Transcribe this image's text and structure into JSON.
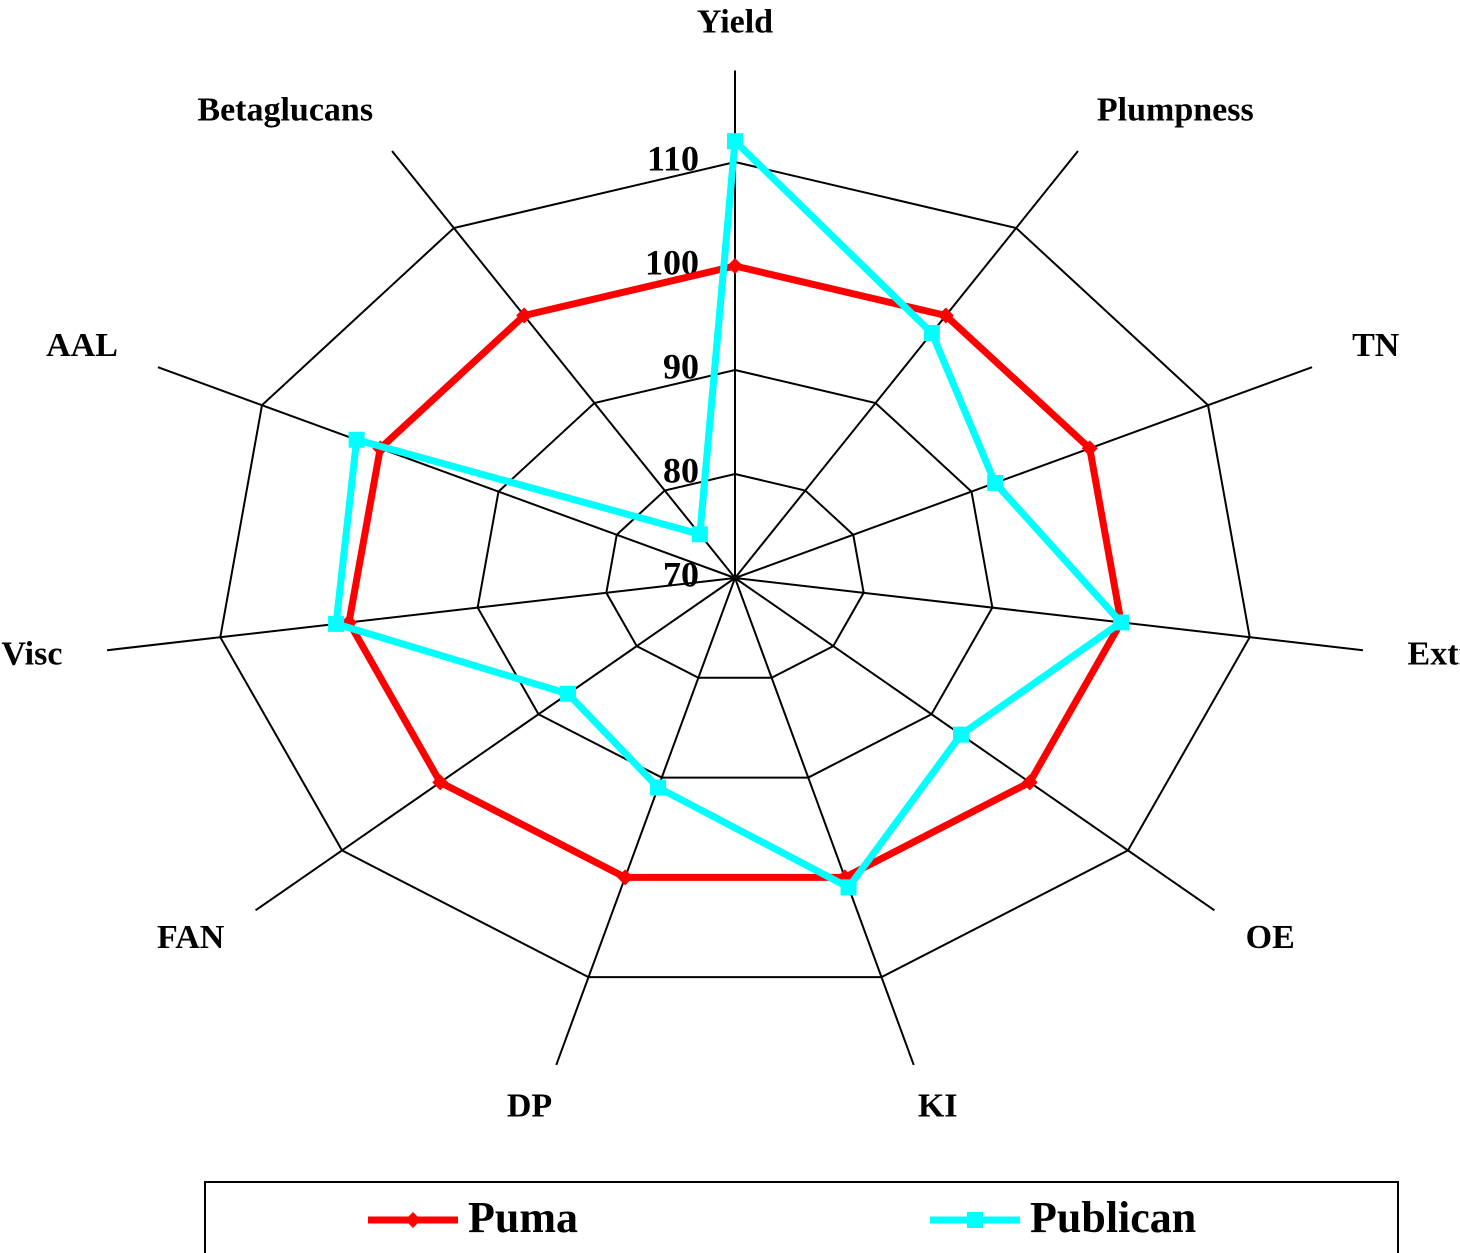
{
  "chart_data": {
    "type": "radar",
    "categories": [
      "Yield",
      "Plumpness",
      "TN",
      "Extr",
      "OE",
      "KI",
      "DP",
      "FAN",
      "Visc",
      "AAL",
      "Betaglucans"
    ],
    "series": [
      {
        "name": "Puma",
        "color": "#ff0000",
        "values": [
          100,
          100,
          100,
          100,
          100,
          100,
          100,
          100,
          100,
          100,
          100
        ]
      },
      {
        "name": "Publican",
        "color": "#00ffff",
        "values": [
          112,
          98,
          92,
          100,
          93,
          101,
          91,
          87,
          101,
          102,
          75
        ]
      }
    ],
    "ylim": [
      70,
      110
    ],
    "yticks": [
      70,
      80,
      90,
      100,
      110
    ],
    "grid": true
  }
}
